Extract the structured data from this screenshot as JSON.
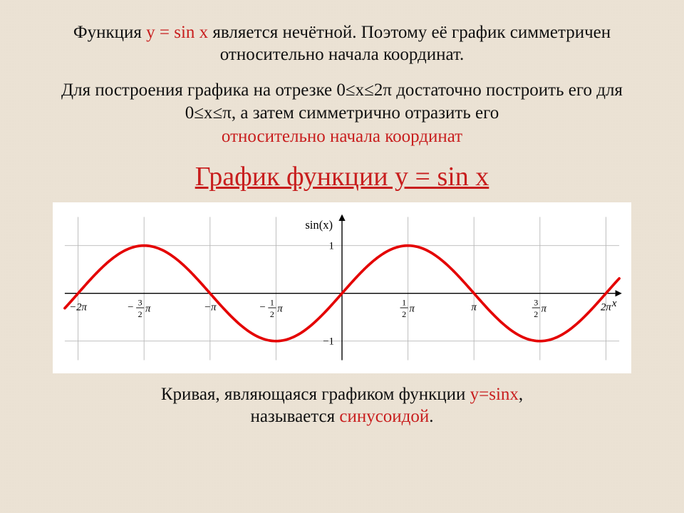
{
  "paragraph1": {
    "pre": "Функция ",
    "eq": "y = sin x",
    "post": " является нечётной. Поэтому её график симметричен относительно начала координат."
  },
  "paragraph2": {
    "line1_a": "Для построения графика на отрезке ",
    "line1_b": "0≤x≤2π",
    "line1_c": " достаточно построить его для ",
    "line1_d": "0≤x≤π",
    "line1_e": ", а затем симметрично отразить его ",
    "line2_red": "относительно начала координат"
  },
  "title": "График функции y = sin x",
  "caption": {
    "line1_a": "Кривая, являющаяся графиком функции ",
    "line1_b": "y=sinx",
    "line1_c": ",",
    "line2_a": "называется ",
    "line2_red": "синусоидой",
    "line2_end": "."
  },
  "chart": {
    "type": "line",
    "series": "sin(x)",
    "xlim": [
      -6.6,
      6.6
    ],
    "ylim": [
      -1.4,
      1.6
    ],
    "grid_color": "#b8b8b8",
    "axis_color": "#000000",
    "curve_color": "#e40000",
    "curve_width": 4,
    "background_color": "#ffffff",
    "label_color": "#000000",
    "label_fontsize": 16,
    "fn_label": "sin(x)",
    "xaxis_label": "x",
    "xticks": [
      -6.2832,
      -4.7124,
      -3.1416,
      -1.5708,
      0,
      1.5708,
      3.1416,
      4.7124,
      6.2832
    ],
    "xtick_labels": [
      "−2π",
      "−3⁄2π",
      "−π",
      "−1⁄2π",
      "",
      "1⁄2π",
      "π",
      "3⁄2π",
      "2π"
    ],
    "yticks": [
      -1,
      1
    ],
    "ytick_labels": [
      "−1",
      "1"
    ]
  }
}
